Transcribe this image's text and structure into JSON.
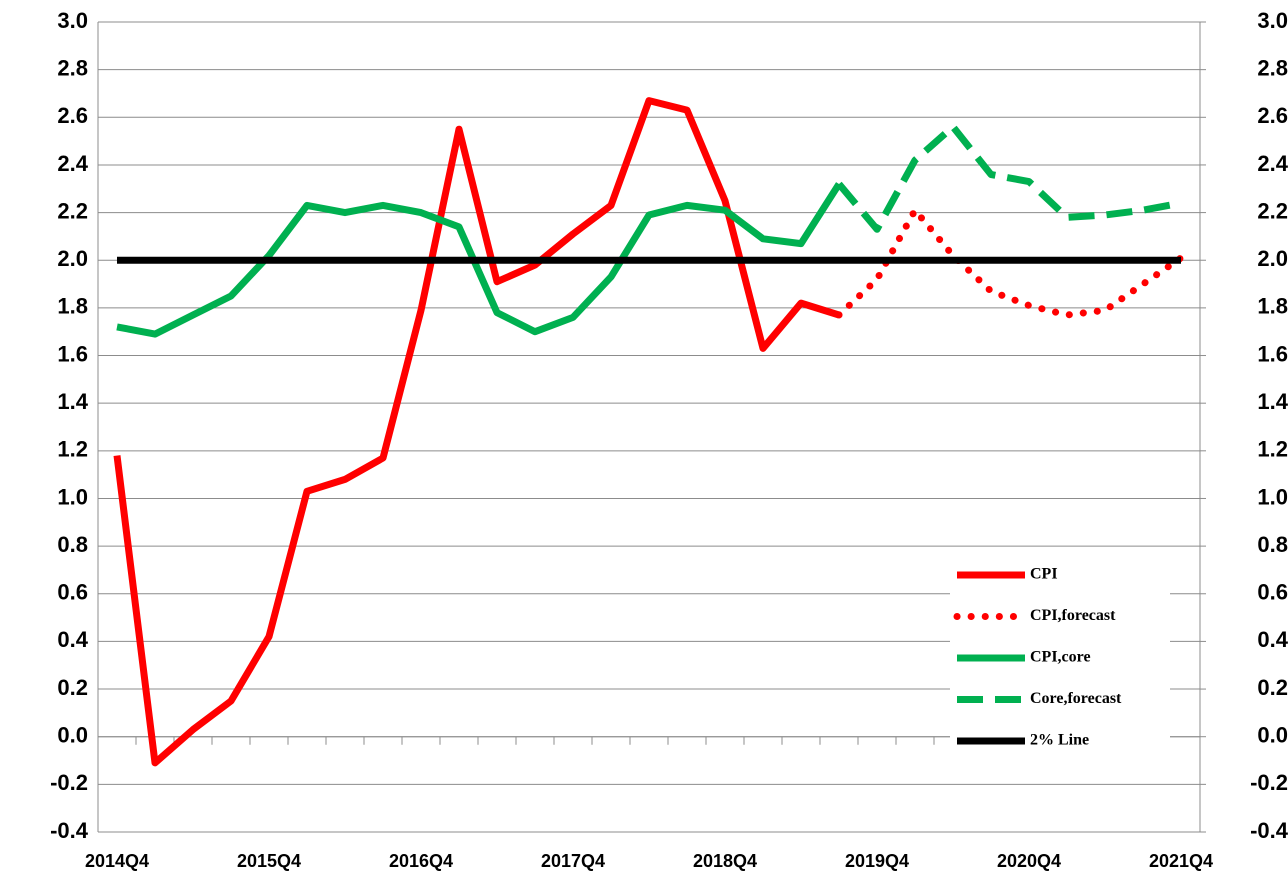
{
  "chart_data": {
    "type": "line",
    "categories": [
      "2014Q4",
      null,
      null,
      null,
      "2015Q4",
      null,
      null,
      null,
      "2016Q4",
      null,
      null,
      null,
      "2017Q4",
      null,
      null,
      null,
      "2018Q4",
      null,
      null,
      null,
      "2019Q4",
      null,
      null,
      null,
      "2020Q4",
      null,
      null,
      null,
      "2021Q4"
    ],
    "series": [
      {
        "name": "CPI",
        "color": "#ff0000",
        "line_style": "solid",
        "values": [
          1.18,
          -0.11,
          0.03,
          0.15,
          0.42,
          1.03,
          1.08,
          1.17,
          1.79,
          2.55,
          1.91,
          1.98,
          2.11,
          2.23,
          2.67,
          2.63,
          2.25,
          1.63,
          1.82,
          1.77,
          null,
          null,
          null,
          null,
          null,
          null,
          null,
          null,
          null
        ]
      },
      {
        "name": "CPI,forecast",
        "color": "#ff0000",
        "line_style": "dotted",
        "values": [
          null,
          null,
          null,
          null,
          null,
          null,
          null,
          null,
          null,
          null,
          null,
          null,
          null,
          null,
          null,
          null,
          null,
          null,
          null,
          1.77,
          1.92,
          2.21,
          2.02,
          1.87,
          1.81,
          1.77,
          1.79,
          1.9,
          2.01
        ]
      },
      {
        "name": "CPI,core",
        "color": "#00b050",
        "line_style": "solid",
        "values": [
          1.72,
          1.69,
          1.77,
          1.85,
          2.02,
          2.23,
          2.2,
          2.23,
          2.2,
          2.14,
          1.78,
          1.7,
          1.76,
          1.93,
          2.19,
          2.23,
          2.21,
          2.09,
          2.07,
          2.32,
          null,
          null,
          null,
          null,
          null,
          null,
          null,
          null,
          null
        ]
      },
      {
        "name": "Core,forecast",
        "color": "#00b050",
        "line_style": "dashed",
        "values": [
          null,
          null,
          null,
          null,
          null,
          null,
          null,
          null,
          null,
          null,
          null,
          null,
          null,
          null,
          null,
          null,
          null,
          null,
          null,
          2.32,
          2.13,
          2.42,
          2.56,
          2.36,
          2.33,
          2.18,
          2.19,
          2.21,
          2.24
        ]
      },
      {
        "name": "2% Line",
        "color": "#000000",
        "line_style": "solid",
        "values": [
          2,
          2,
          2,
          2,
          2,
          2,
          2,
          2,
          2,
          2,
          2,
          2,
          2,
          2,
          2,
          2,
          2,
          2,
          2,
          2,
          2,
          2,
          2,
          2,
          2,
          2,
          2,
          2,
          2
        ]
      }
    ],
    "ylim": [
      -0.4,
      3.0
    ],
    "yticks": [
      -0.4,
      -0.2,
      {
        "value": 0,
        "label": "0.0"
      },
      0.2,
      0.4,
      0.6,
      0.8,
      {
        "value": 1,
        "label": "1.0"
      },
      1.2,
      1.4,
      1.6,
      1.8,
      {
        "value": 2,
        "label": "2.0"
      },
      2.2,
      2.4,
      2.6,
      2.8,
      {
        "value": 3,
        "label": "3.0"
      }
    ],
    "y2lim": [
      -0.4,
      3.0
    ],
    "y2ticks": [
      -0.4,
      -0.2,
      {
        "value": 0,
        "label": "0.0"
      },
      0.2,
      0.4,
      0.6,
      0.8,
      {
        "value": 1,
        "label": "1.0"
      },
      1.2,
      1.4,
      1.6,
      1.8,
      {
        "value": 2,
        "label": "2.0"
      },
      2.2,
      2.4,
      2.6,
      2.8,
      {
        "value": 3,
        "label": "3.0"
      }
    ],
    "grid": true,
    "legend": "lower right"
  }
}
